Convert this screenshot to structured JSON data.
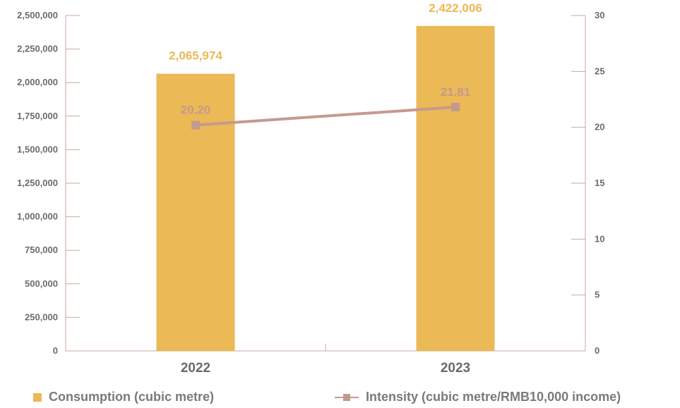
{
  "chart_data": {
    "type": "bar",
    "categories": [
      "2022",
      "2023"
    ],
    "series": [
      {
        "name": "Consumption (cubic metre)",
        "type": "bar",
        "axis": "left",
        "values": [
          2065974,
          2422006
        ],
        "labels": [
          "2,065,974",
          "2,422,006"
        ],
        "color": "#EBB955"
      },
      {
        "name": "Intensity (cubic metre/RMB10,000 income)",
        "type": "line",
        "axis": "right",
        "values": [
          20.2,
          21.81
        ],
        "labels": [
          "20.20",
          "21.81"
        ],
        "color": "#C49A8F"
      }
    ],
    "y_left": {
      "range": [
        0,
        2500000
      ],
      "ticks": [
        0,
        250000,
        500000,
        750000,
        1000000,
        1250000,
        1500000,
        1750000,
        2000000,
        2250000,
        2500000
      ],
      "tick_labels": [
        "0",
        "250,000",
        "500,000",
        "750,000",
        "1,000,000",
        "1,250,000",
        "1,500,000",
        "1,750,000",
        "2,000,000",
        "2,250,000",
        "2,500,000"
      ]
    },
    "y_right": {
      "range": [
        0,
        30
      ],
      "ticks": [
        0,
        5,
        10,
        15,
        20,
        25,
        30
      ],
      "tick_labels": [
        "0",
        "5",
        "10",
        "15",
        "20",
        "25",
        "30"
      ]
    },
    "axis_color": "#C9A9A0",
    "tick_color": "#6b6b6b",
    "grid": false,
    "legend_position": "bottom"
  }
}
